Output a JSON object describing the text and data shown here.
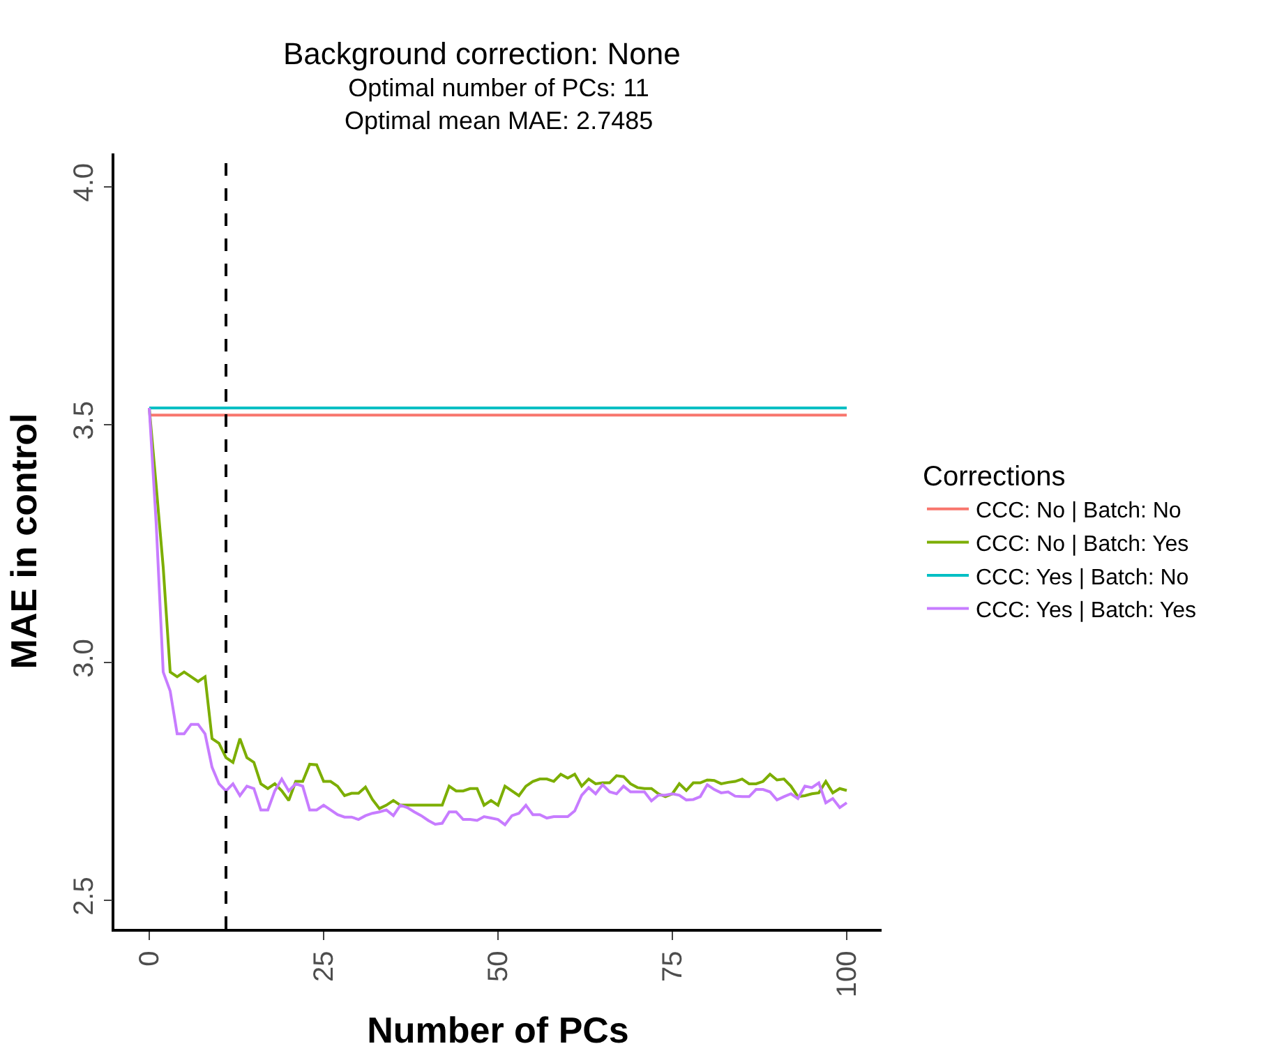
{
  "chart_data": {
    "type": "line",
    "title": "Background correction: None",
    "subtitle": "Optimal number of PCs: 11\nOptimal mean MAE: 2.7485",
    "xlabel": "Number of PCs",
    "ylabel": "MAE in control",
    "legend_title": "Corrections",
    "x": [
      0,
      1,
      2,
      3,
      4,
      5,
      6,
      7,
      8,
      9,
      10,
      11,
      12,
      13,
      14,
      15,
      16,
      17,
      18,
      19,
      20,
      21,
      22,
      23,
      24,
      25,
      26,
      27,
      28,
      29,
      30,
      31,
      32,
      33,
      34,
      35,
      36,
      37,
      38,
      39,
      40,
      41,
      42,
      43,
      44,
      45,
      46,
      47,
      48,
      49,
      50,
      51,
      52,
      53,
      54,
      55,
      56,
      57,
      58,
      59,
      60,
      61,
      62,
      63,
      64,
      65,
      66,
      67,
      68,
      69,
      70,
      71,
      72,
      73,
      74,
      75,
      76,
      77,
      78,
      79,
      80,
      81,
      82,
      83,
      84,
      85,
      86,
      87,
      88,
      89,
      90,
      91,
      92,
      93,
      94,
      95,
      96,
      97,
      98,
      99,
      100
    ],
    "series": [
      {
        "name": "CCC: No | Batch: No",
        "color": "#f8766d",
        "values": [
          3.52,
          3.52,
          3.52,
          3.52,
          3.52,
          3.52,
          3.52,
          3.52,
          3.52,
          3.52,
          3.52,
          3.52,
          3.52,
          3.52,
          3.52,
          3.52,
          3.52,
          3.52,
          3.52,
          3.52,
          3.52,
          3.52,
          3.52,
          3.52,
          3.52,
          3.52,
          3.52,
          3.52,
          3.52,
          3.52,
          3.52,
          3.52,
          3.52,
          3.52,
          3.52,
          3.52,
          3.52,
          3.52,
          3.52,
          3.52,
          3.52,
          3.52,
          3.52,
          3.52,
          3.52,
          3.52,
          3.52,
          3.52,
          3.52,
          3.52,
          3.52,
          3.52,
          3.52,
          3.52,
          3.52,
          3.52,
          3.52,
          3.52,
          3.52,
          3.52,
          3.52,
          3.52,
          3.52,
          3.52,
          3.52,
          3.52,
          3.52,
          3.52,
          3.52,
          3.52,
          3.52,
          3.52,
          3.52,
          3.52,
          3.52,
          3.52,
          3.52,
          3.52,
          3.52,
          3.52,
          3.52,
          3.52,
          3.52,
          3.52,
          3.52,
          3.52,
          3.52,
          3.52,
          3.52,
          3.52,
          3.52,
          3.52,
          3.52,
          3.52,
          3.52,
          3.52,
          3.52,
          3.52,
          3.52,
          3.52,
          3.52
        ]
      },
      {
        "name": "CCC: No | Batch: Yes",
        "color": "#7cae00",
        "values": [
          3.535,
          3.37,
          3.2,
          2.98,
          2.97,
          2.98,
          2.97,
          2.96,
          2.97,
          2.84,
          2.83,
          2.8,
          2.79,
          2.84,
          2.8,
          2.79,
          2.745,
          2.735,
          2.745,
          2.73,
          2.71,
          2.75,
          2.75,
          2.786,
          2.785,
          2.75,
          2.75,
          2.74,
          2.72,
          2.725,
          2.725,
          2.738,
          2.712,
          2.693,
          2.7,
          2.71,
          2.7,
          2.7,
          2.7,
          2.7,
          2.7,
          2.7,
          2.7,
          2.74,
          2.73,
          2.73,
          2.735,
          2.735,
          2.7,
          2.71,
          2.7,
          2.74,
          2.73,
          2.72,
          2.74,
          2.75,
          2.755,
          2.755,
          2.75,
          2.765,
          2.757,
          2.765,
          2.74,
          2.755,
          2.745,
          2.747,
          2.747,
          2.762,
          2.76,
          2.745,
          2.737,
          2.735,
          2.735,
          2.724,
          2.718,
          2.724,
          2.745,
          2.731,
          2.747,
          2.747,
          2.753,
          2.752,
          2.745,
          2.748,
          2.75,
          2.755,
          2.745,
          2.745,
          2.75,
          2.765,
          2.753,
          2.755,
          2.74,
          2.718,
          2.72,
          2.724,
          2.726,
          2.75,
          2.726,
          2.735,
          2.731
        ]
      },
      {
        "name": "CCC: Yes | Batch: No",
        "color": "#00bfc4",
        "values": [
          3.535,
          3.535,
          3.535,
          3.535,
          3.535,
          3.535,
          3.535,
          3.535,
          3.535,
          3.535,
          3.535,
          3.535,
          3.535,
          3.535,
          3.535,
          3.535,
          3.535,
          3.535,
          3.535,
          3.535,
          3.535,
          3.535,
          3.535,
          3.535,
          3.535,
          3.535,
          3.535,
          3.535,
          3.535,
          3.535,
          3.535,
          3.535,
          3.535,
          3.535,
          3.535,
          3.535,
          3.535,
          3.535,
          3.535,
          3.535,
          3.535,
          3.535,
          3.535,
          3.535,
          3.535,
          3.535,
          3.535,
          3.535,
          3.535,
          3.535,
          3.535,
          3.535,
          3.535,
          3.535,
          3.535,
          3.535,
          3.535,
          3.535,
          3.535,
          3.535,
          3.535,
          3.535,
          3.535,
          3.535,
          3.535,
          3.535,
          3.535,
          3.535,
          3.535,
          3.535,
          3.535,
          3.535,
          3.535,
          3.535,
          3.535,
          3.535,
          3.535,
          3.535,
          3.535,
          3.535,
          3.535,
          3.535,
          3.535,
          3.535,
          3.535,
          3.535,
          3.535,
          3.535,
          3.535,
          3.535,
          3.535,
          3.535,
          3.535,
          3.535,
          3.535,
          3.535,
          3.535,
          3.535,
          3.535,
          3.535,
          3.535
        ]
      },
      {
        "name": "CCC: Yes | Batch: Yes",
        "color": "#c77cff",
        "values": [
          3.535,
          3.29,
          2.98,
          2.94,
          2.85,
          2.85,
          2.87,
          2.87,
          2.85,
          2.78,
          2.745,
          2.73,
          2.745,
          2.72,
          2.74,
          2.735,
          2.69,
          2.69,
          2.73,
          2.755,
          2.73,
          2.745,
          2.74,
          2.69,
          2.69,
          2.7,
          2.69,
          2.68,
          2.675,
          2.675,
          2.67,
          2.678,
          2.683,
          2.686,
          2.69,
          2.678,
          2.7,
          2.695,
          2.686,
          2.678,
          2.668,
          2.66,
          2.662,
          2.686,
          2.686,
          2.67,
          2.67,
          2.668,
          2.676,
          2.673,
          2.67,
          2.659,
          2.678,
          2.683,
          2.7,
          2.68,
          2.68,
          2.673,
          2.676,
          2.676,
          2.676,
          2.688,
          2.721,
          2.737,
          2.724,
          2.743,
          2.728,
          2.724,
          2.74,
          2.728,
          2.728,
          2.728,
          2.709,
          2.721,
          2.721,
          2.724,
          2.721,
          2.711,
          2.712,
          2.718,
          2.743,
          2.733,
          2.726,
          2.728,
          2.719,
          2.718,
          2.718,
          2.733,
          2.733,
          2.728,
          2.711,
          2.718,
          2.724,
          2.714,
          2.74,
          2.737,
          2.747,
          2.705,
          2.714,
          2.695,
          2.705
        ]
      }
    ],
    "ref_lines": [
      {
        "axis": "x",
        "value": 11,
        "color": "#000000",
        "line_style": "dashed"
      }
    ],
    "xlim": [
      -5,
      105
    ],
    "xticks": [
      0,
      25,
      50,
      75,
      100
    ],
    "ylim": [
      2.44,
      4.07
    ],
    "yticks": [
      {
        "value": 2.5,
        "label": "2.5"
      },
      {
        "value": 3.0,
        "label": "3.0"
      },
      {
        "value": 3.5,
        "label": "3.5"
      },
      {
        "value": 4.0,
        "label": "4.0"
      }
    ],
    "legend": "right",
    "marker": "none",
    "line_style": "solid"
  }
}
